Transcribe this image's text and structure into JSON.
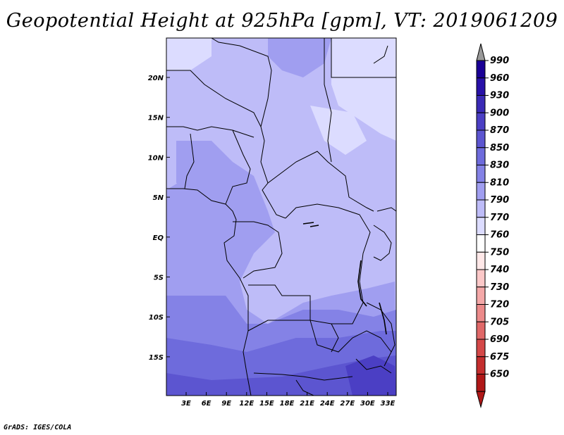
{
  "title": "Geopotential Height at 925hPa [gpm], VT: 2019061209",
  "credit": "GrADS: IGES/COLA",
  "map": {
    "lat_labels": [
      "20N",
      "15N",
      "10N",
      "5N",
      "EQ",
      "5S",
      "10S",
      "15S"
    ],
    "lon_labels": [
      "3E",
      "6E",
      "9E",
      "12E",
      "15E",
      "18E",
      "21E",
      "24E",
      "27E",
      "30E",
      "33E"
    ]
  },
  "colorbar": {
    "levels": [
      "990",
      "960",
      "930",
      "900",
      "870",
      "850",
      "830",
      "810",
      "790",
      "770",
      "760",
      "750",
      "740",
      "730",
      "720",
      "705",
      "690",
      "675",
      "650"
    ],
    "colors": [
      "#1a0096",
      "#2811a8",
      "#3a2ab6",
      "#4b3fc4",
      "#5c55d0",
      "#6e6bdc",
      "#8482e6",
      "#a09ef0",
      "#bebcf8",
      "#dcdcff",
      "#ffffff",
      "#ffe8e8",
      "#fcc8c8",
      "#f4a8a8",
      "#ec8a8a",
      "#e06868",
      "#d44848",
      "#c42e2e",
      "#b01818"
    ],
    "under_color": "#b01818",
    "over_color": "#999999"
  }
}
